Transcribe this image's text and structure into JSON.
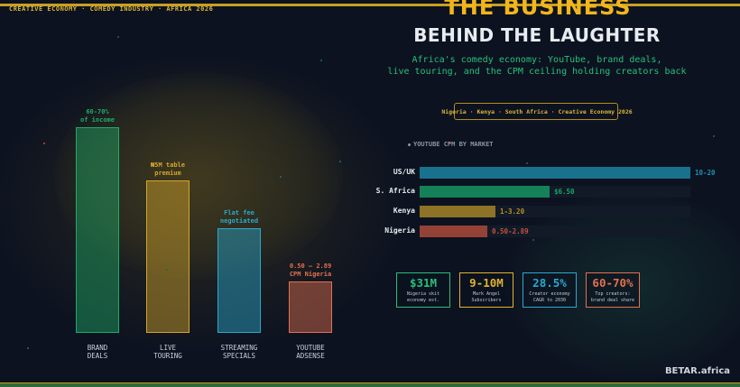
{
  "kicker": "CREATIVE ECONOMY  ·  COMEDY INDUSTRY  ·  AFRICA 2026",
  "header": {
    "title_line1": "THE BUSINESS",
    "title_line2": "BEHIND THE LAUGHTER",
    "subtitle_line1": "Africa's comedy economy: YouTube, brand deals,",
    "subtitle_line2": "live touring, and the CPM ceiling holding creators back",
    "tagline": "Nigeria · Kenya · South Africa  ·  Creative Economy 2026"
  },
  "cpm_section": {
    "heading": "YOUTUBE CPM BY MARKET",
    "rows": [
      {
        "label": "US/UK",
        "value_text": "10-20",
        "fill": 1.0,
        "color": "#1a90b0"
      },
      {
        "label": "S. Africa",
        "value_text": "$6.50",
        "fill": 0.48,
        "color": "#17a468"
      },
      {
        "label": "Kenya",
        "value_text": "1-3.20",
        "fill": 0.28,
        "color": "#b89024"
      },
      {
        "label": "Nigeria",
        "value_text": "0.50-2.89",
        "fill": 0.25,
        "color": "#c0503a"
      }
    ]
  },
  "stats": [
    {
      "value": "$31M",
      "label_line1": "Nigeria skit",
      "label_line2": "economy est.",
      "color": "#27c07a"
    },
    {
      "value": "9-10M",
      "label_line1": "Mark Angel",
      "label_line2": "Subscribers",
      "color": "#e2b330"
    },
    {
      "value": "28.5%",
      "label_line1": "Creator economy",
      "label_line2": "CAGR to 2030",
      "color": "#2aa9cf"
    },
    {
      "value": "60-70%",
      "label_line1": "Top creators:",
      "label_line2": "brand deal share",
      "color": "#e4704f"
    }
  ],
  "income_bars": [
    {
      "top_line1": "60-70%",
      "top_line2": "of income",
      "cat_line1": "BRAND",
      "cat_line2": "DEALS",
      "color": "#1eaa66",
      "level": 1.0
    },
    {
      "top_line1": "₦5M table",
      "top_line2": "premium",
      "cat_line1": "LIVE",
      "cat_line2": "TOURING",
      "color": "#d4a62a",
      "level": 0.74
    },
    {
      "top_line1": "Flat fee",
      "top_line2": "negotiated",
      "cat_line1": "STREAMING",
      "cat_line2": "SPECIALS",
      "color": "#2aa9cf",
      "level": 0.51
    },
    {
      "top_line1": "0.50 – 2.89",
      "top_line2": "CPM Nigeria",
      "cat_line1": "YOUTUBE",
      "cat_line2": "ADSENSE",
      "color": "#e4704f",
      "level": 0.25
    }
  ],
  "brand": "BETAR.africa"
}
